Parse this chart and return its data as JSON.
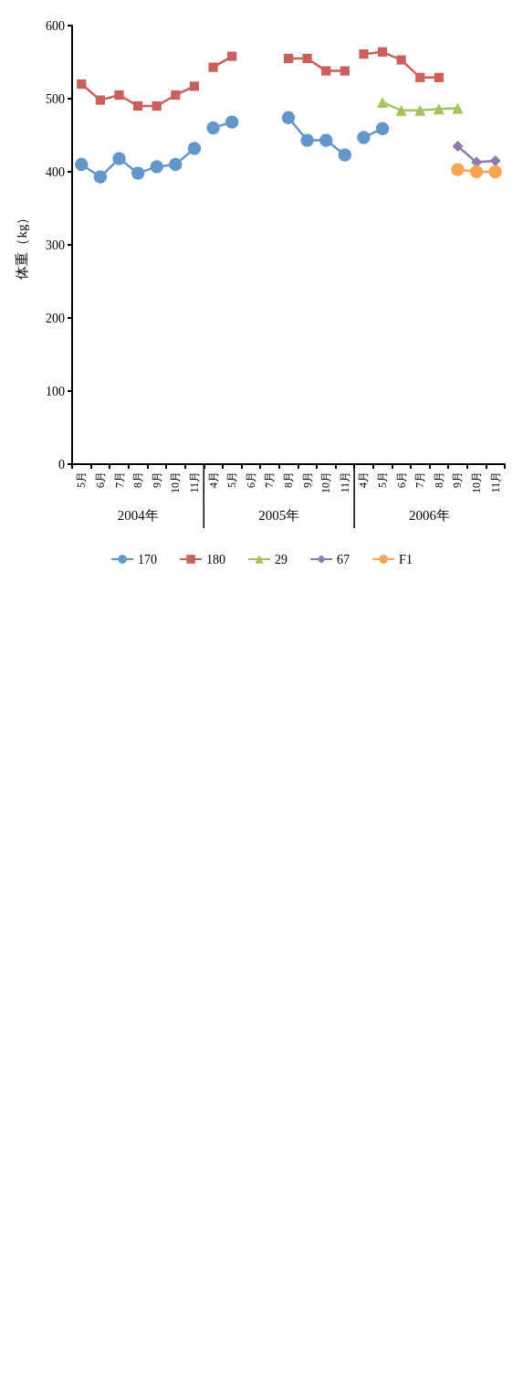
{
  "chart_data": {
    "type": "line",
    "ylabel": "体重（kg）",
    "categories": [
      "5月",
      "6月",
      "7月",
      "8月",
      "9月",
      "10月",
      "11月",
      "4月",
      "5月",
      "6月",
      "7月",
      "8月",
      "9月",
      "10月",
      "11月",
      "4月",
      "5月",
      "6月",
      "7月",
      "8月",
      "9月",
      "10月",
      "11月"
    ],
    "annotations": [
      "2004年",
      "2005年",
      "2006年"
    ],
    "ylim": [
      0,
      600
    ],
    "yticks": [
      0,
      100,
      200,
      300,
      400,
      500,
      600
    ],
    "grid": false,
    "legend": "bottom",
    "series": [
      {
        "name": "170",
        "color": "#6497c9",
        "marker": "circle",
        "values": [
          410,
          393,
          418,
          398,
          407,
          410,
          432,
          460,
          468,
          null,
          null,
          474,
          443,
          443,
          423,
          447,
          459,
          null,
          null,
          null,
          null,
          null,
          null
        ]
      },
      {
        "name": "180",
        "color": "#c9605b",
        "marker": "square",
        "values": [
          520,
          498,
          505,
          490,
          490,
          505,
          517,
          543,
          558,
          null,
          null,
          555,
          555,
          538,
          538,
          561,
          564,
          553,
          529,
          529,
          null,
          null,
          null
        ]
      },
      {
        "name": "29",
        "color": "#a5c261",
        "marker": "triangle",
        "values": [
          null,
          null,
          null,
          null,
          null,
          null,
          null,
          null,
          null,
          null,
          null,
          null,
          null,
          null,
          null,
          null,
          495,
          484,
          484,
          486,
          487,
          null,
          null
        ]
      },
      {
        "name": "67",
        "color": "#8e79b0",
        "marker": "diamond",
        "values": [
          null,
          null,
          null,
          null,
          null,
          null,
          null,
          null,
          null,
          null,
          null,
          null,
          null,
          null,
          null,
          null,
          null,
          null,
          null,
          null,
          435,
          413,
          415
        ]
      },
      {
        "name": "F1",
        "color": "#f9a453",
        "marker": "circle",
        "values": [
          null,
          null,
          null,
          null,
          null,
          null,
          null,
          null,
          null,
          null,
          null,
          null,
          null,
          null,
          null,
          null,
          null,
          null,
          null,
          null,
          403,
          400,
          400
        ]
      }
    ]
  }
}
